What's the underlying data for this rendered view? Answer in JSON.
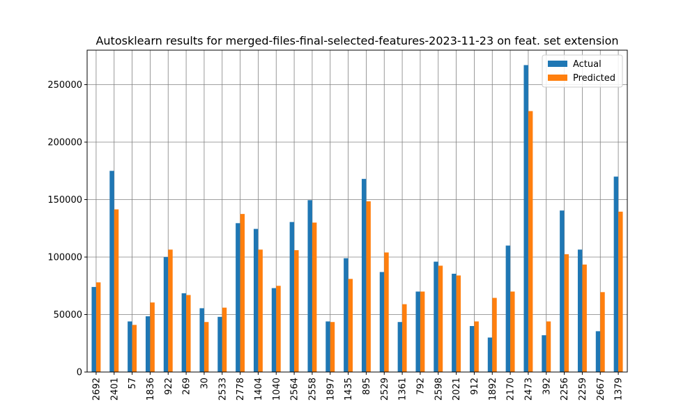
{
  "chart_data": {
    "type": "bar",
    "title": "Autosklearn results for merged-files-final-selected-features-2023-11-23 on feat. set extension",
    "xlabel": "",
    "ylabel": "",
    "categories": [
      "2692",
      "2401",
      "57",
      "1836",
      "922",
      "269",
      "30",
      "2533",
      "2778",
      "1404",
      "1040",
      "2564",
      "2558",
      "1897",
      "1435",
      "895",
      "2529",
      "1361",
      "792",
      "2598",
      "2021",
      "912",
      "1892",
      "2170",
      "2473",
      "392",
      "2256",
      "2259",
      "2667",
      "1379"
    ],
    "series": [
      {
        "name": "Actual",
        "color": "#1f77b4",
        "values": [
          74000,
          175000,
          44000,
          48500,
          100000,
          68500,
          55500,
          48000,
          129500,
          124500,
          73000,
          130500,
          149500,
          44000,
          99000,
          168000,
          87000,
          43500,
          70000,
          96000,
          85500,
          40000,
          30000,
          110000,
          267000,
          32000,
          140500,
          106500,
          35500,
          170000
        ]
      },
      {
        "name": "Predicted",
        "color": "#ff7f0e",
        "values": [
          78000,
          141500,
          41000,
          60500,
          106500,
          67000,
          43500,
          56000,
          137500,
          106500,
          75000,
          106000,
          130000,
          43500,
          81000,
          148500,
          104000,
          59000,
          70000,
          92500,
          84000,
          44000,
          64500,
          70000,
          227000,
          44000,
          102500,
          93500,
          69500,
          139500
        ]
      }
    ],
    "ylim": [
      0,
      280000
    ],
    "yticks": [
      0,
      50000,
      100000,
      150000,
      200000,
      250000
    ],
    "ytick_labels": [
      "0",
      "50000",
      "100000",
      "150000",
      "200000",
      "250000"
    ],
    "grid": true,
    "legend_position": "top-right"
  }
}
